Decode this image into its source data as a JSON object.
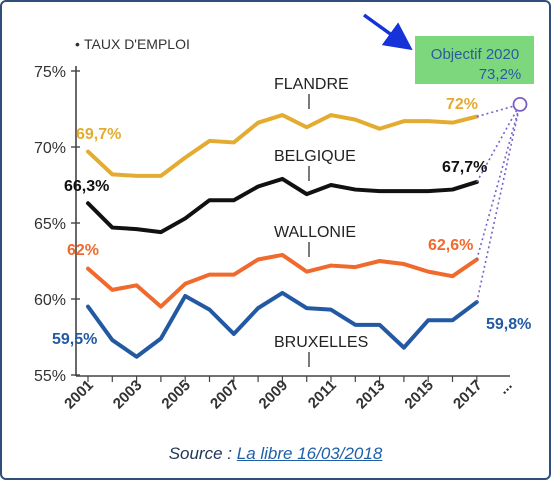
{
  "chart_data": {
    "type": "line",
    "title": "TAUX D'EMPLOI",
    "x": [
      2001,
      2002,
      2003,
      2004,
      2005,
      2006,
      2007,
      2008,
      2009,
      2010,
      2011,
      2012,
      2013,
      2014,
      2015,
      2016,
      2017
    ],
    "x_tick_labels": [
      "2001",
      "2003",
      "2005",
      "2007",
      "2009",
      "2011",
      "2013",
      "2015",
      "2017",
      "..."
    ],
    "y_tick_labels": [
      "75%",
      "70%",
      "65%",
      "60%",
      "55%"
    ],
    "ylim": [
      55,
      75
    ],
    "grid": false,
    "series": [
      {
        "name": "FLANDRE",
        "color": "#e3ac30",
        "values": [
          69.7,
          68.2,
          68.1,
          68.1,
          69.3,
          70.4,
          70.3,
          71.6,
          72.1,
          71.3,
          72.1,
          71.8,
          71.2,
          71.7,
          71.7,
          71.6,
          72.0
        ],
        "start_label": "69,7%",
        "end_label": "72%"
      },
      {
        "name": "BELGIQUE",
        "color": "#111111",
        "values": [
          66.3,
          64.7,
          64.6,
          64.4,
          65.3,
          66.5,
          66.5,
          67.4,
          67.9,
          66.9,
          67.5,
          67.2,
          67.1,
          67.1,
          67.1,
          67.2,
          67.7
        ],
        "start_label": "66,3%",
        "end_label": "67,7%"
      },
      {
        "name": "WALLONIE",
        "color": "#ef6a2c",
        "values": [
          62.0,
          60.6,
          60.9,
          59.5,
          61.0,
          61.6,
          61.6,
          62.6,
          62.9,
          61.8,
          62.2,
          62.1,
          62.5,
          62.3,
          61.8,
          61.5,
          62.6
        ],
        "start_label": "62%",
        "end_label": "62,6%"
      },
      {
        "name": "BRUXELLES",
        "color": "#2359a3",
        "values": [
          59.5,
          57.3,
          56.2,
          57.4,
          60.2,
          59.3,
          57.7,
          59.4,
          60.4,
          59.4,
          59.3,
          58.3,
          58.3,
          56.8,
          58.6,
          58.6,
          59.8
        ],
        "start_label": "59,5%",
        "end_label": "59,8%"
      }
    ],
    "target": {
      "label": "Objectif 2020",
      "value_label": "73,2%",
      "value": 73.2
    }
  },
  "legend_marker": "•",
  "source": {
    "prefix": "Source : ",
    "link_text": "La libre 16/03/2018"
  },
  "colors": {
    "frame": "#2f4f7a",
    "target_box": "#7dd87d",
    "target_text": "#2a5aa0",
    "arrow": "#1533d8",
    "dotted": "#7a5fc8"
  }
}
